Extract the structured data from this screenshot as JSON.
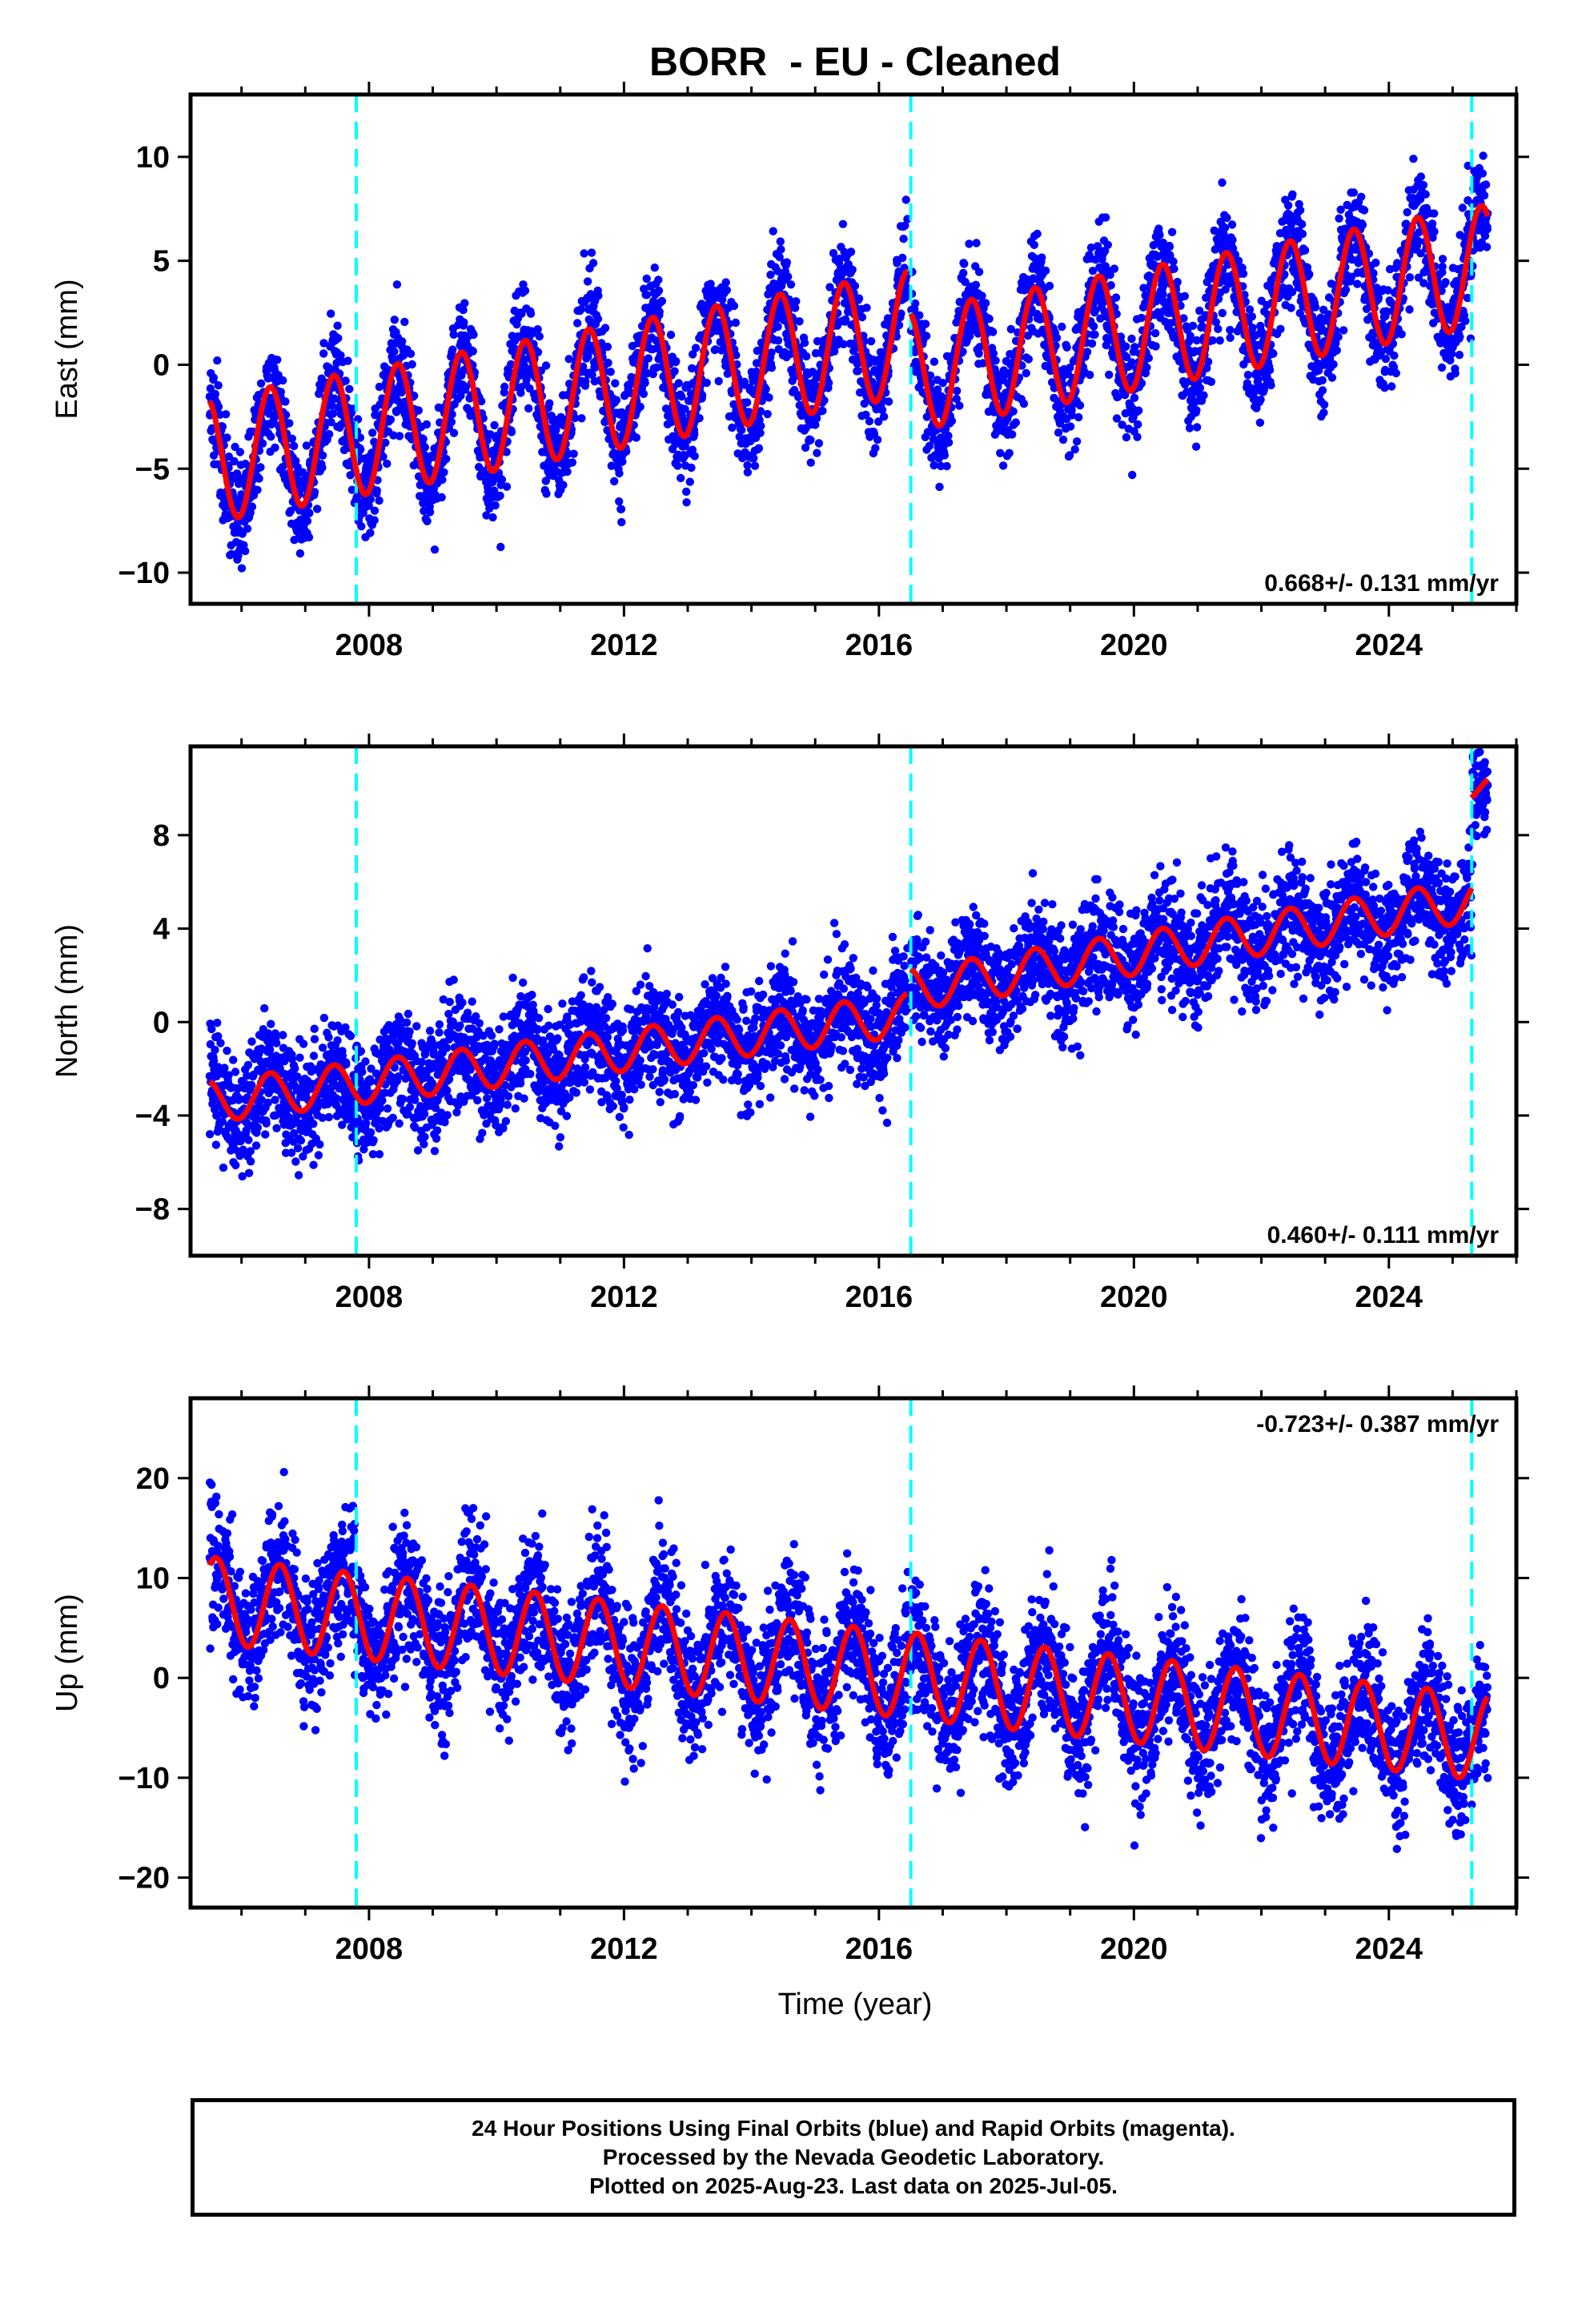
{
  "title": "BORR  - EU - Cleaned",
  "xlabel": "Time (year)",
  "footer": {
    "line1": "24 Hour Positions Using Final Orbits (blue) and Rapid Orbits (magenta).",
    "line2": "Processed by the Nevada Geodetic Laboratory.",
    "line3": "Plotted on 2025-Aug-23. Last data on 2025-Jul-05."
  },
  "colors": {
    "points": "#0000ff",
    "fit": "#ff0000",
    "event_lines": "#00ffff",
    "frame": "#000000"
  },
  "chart_data": [
    {
      "type": "scatter",
      "component": "east",
      "ylabel": "East (mm)",
      "rate_label": "0.668+/- 0.131 mm/yr",
      "rate_position": "bottom-right",
      "xlim": [
        2005.2,
        2026.0
      ],
      "ylim": [
        -11.5,
        13.0
      ],
      "xticks": [
        2008,
        2012,
        2016,
        2020,
        2024
      ],
      "yticks": [
        -10,
        -5,
        0,
        5,
        10
      ],
      "event_lines": [
        2007.8,
        2016.5,
        2025.3
      ],
      "fit": {
        "segments": [
          {
            "start": 2005.5,
            "end": 2016.45,
            "mean_start": -4.6,
            "mean_end": 1.5,
            "annual_amp": 3.0
          },
          {
            "start": 2016.5,
            "end": 2025.55,
            "mean_start": -0.3,
            "mean_end": 4.8,
            "annual_amp": 2.9
          }
        ],
        "peak_phase": 0.45
      },
      "scatter_spread": 1.3,
      "grid": false
    },
    {
      "type": "scatter",
      "component": "north",
      "ylabel": "North (mm)",
      "rate_label": "0.460+/- 0.111 mm/yr",
      "rate_position": "bottom-right",
      "xlim": [
        2005.2,
        2026.0
      ],
      "ylim": [
        -10.0,
        11.8
      ],
      "xticks": [
        2008,
        2012,
        2016,
        2020,
        2024
      ],
      "yticks": [
        -8,
        -4,
        0,
        4,
        8
      ],
      "event_lines": [
        2007.8,
        2016.5,
        2025.3
      ],
      "fit": {
        "segments": [
          {
            "start": 2005.5,
            "end": 2016.45,
            "mean_start": -3.4,
            "mean_end": 0.3,
            "annual_amp": 0.9
          },
          {
            "start": 2016.5,
            "end": 2025.3,
            "mean_start": 1.4,
            "mean_end": 5.2,
            "annual_amp": 0.9
          },
          {
            "start": 2025.3,
            "end": 2025.55,
            "mean_start": 9.6,
            "mean_end": 10.4,
            "annual_amp": 0.0
          }
        ],
        "peak_phase": 0.45
      },
      "scatter_spread": 1.2,
      "grid": false
    },
    {
      "type": "scatter",
      "component": "up",
      "ylabel": "Up (mm)",
      "rate_label": "-0.723+/- 0.387 mm/yr",
      "rate_position": "top-right",
      "xlim": [
        2005.2,
        2026.0
      ],
      "ylim": [
        -23.0,
        28.0
      ],
      "xticks": [
        2008,
        2012,
        2016,
        2020,
        2024
      ],
      "yticks": [
        -20,
        -10,
        0,
        10,
        20
      ],
      "event_lines": [
        2007.8,
        2016.5,
        2025.3
      ],
      "fit": {
        "segments": [
          {
            "start": 2005.5,
            "end": 2025.55,
            "mean_start": 7.8,
            "mean_end": -6.0,
            "annual_amp": 4.3
          }
        ],
        "peak_phase": 0.6
      },
      "scatter_spread": 3.4,
      "grid": false
    }
  ]
}
